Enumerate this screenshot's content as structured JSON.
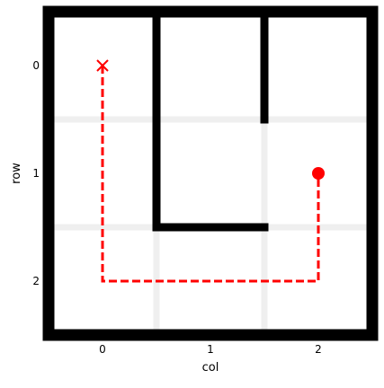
{
  "chart_data": {
    "type": "scatter",
    "title": "",
    "xlabel": "col",
    "ylabel": "row",
    "xlim": [
      -0.5,
      2.5
    ],
    "ylim": [
      2.5,
      -0.5
    ],
    "x_ticks": [
      0,
      1,
      2
    ],
    "y_ticks": [
      0,
      1,
      2
    ],
    "x_tick_labels": [
      "0",
      "1",
      "2"
    ],
    "y_tick_labels": [
      "0",
      "1",
      "2"
    ],
    "grid": "faint light-gray lines at cell boundaries 0.5 and 1.5",
    "maze_walls": [
      {
        "x": [
          -0.5,
          2.5
        ],
        "y": [
          -0.5,
          -0.5
        ]
      },
      {
        "x": [
          -0.5,
          2.5
        ],
        "y": [
          2.5,
          2.5
        ]
      },
      {
        "x": [
          -0.5,
          -0.5
        ],
        "y": [
          -0.5,
          2.5
        ]
      },
      {
        "x": [
          2.5,
          2.5
        ],
        "y": [
          -0.5,
          2.5
        ]
      },
      {
        "x": [
          0.5,
          0.5
        ],
        "y": [
          -0.5,
          1.5
        ]
      },
      {
        "x": [
          0.5,
          1.5
        ],
        "y": [
          1.5,
          1.5
        ]
      },
      {
        "x": [
          1.5,
          1.5
        ],
        "y": [
          -0.5,
          0.5
        ]
      }
    ],
    "path": {
      "style": "dashed",
      "color": "#ff0000",
      "points": [
        {
          "x": 0,
          "y": 0
        },
        {
          "x": 0,
          "y": 2
        },
        {
          "x": 2,
          "y": 2
        },
        {
          "x": 2,
          "y": 1
        }
      ]
    },
    "start_marker": {
      "x": 0,
      "y": 0,
      "symbol": "x",
      "color": "#ff0000"
    },
    "end_marker": {
      "x": 2,
      "y": 1,
      "symbol": "circle",
      "color": "#ff0000"
    },
    "colors": {
      "wall": "#000000",
      "path": "#ff0000",
      "grid": "#efefef",
      "background": "#ffffff"
    }
  }
}
